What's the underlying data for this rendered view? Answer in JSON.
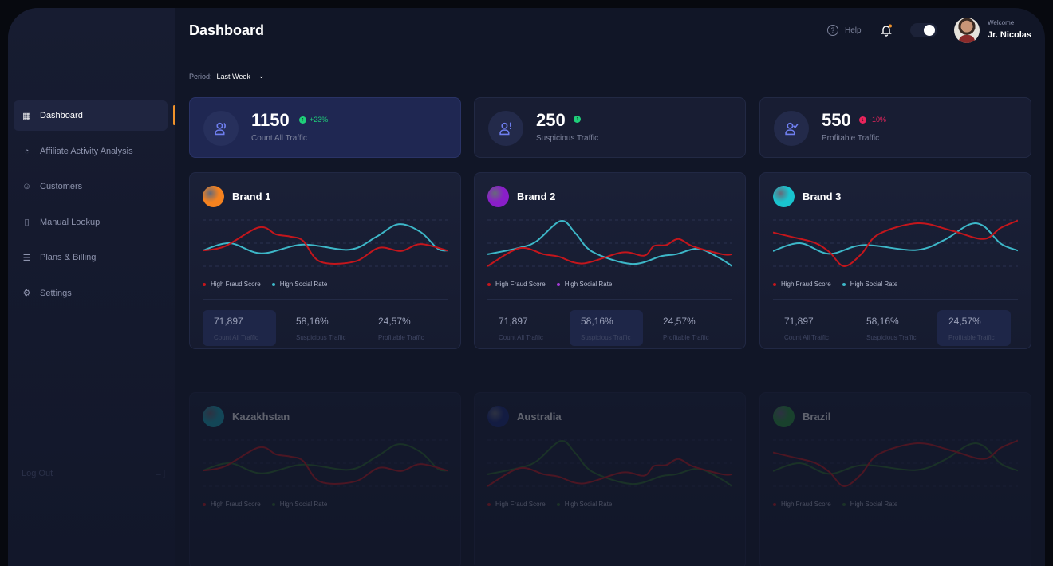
{
  "header": {
    "title": "Dashboard",
    "help": "Help",
    "welcome": "Welcome",
    "user": "Jr. Nicolas",
    "notification_dot_color": "#f0922b"
  },
  "sidebar": {
    "items": [
      {
        "label": "Dashboard",
        "icon": "grid-icon",
        "active": true
      },
      {
        "label": "Affiliate Activity Analysis",
        "icon": "pie-chart-icon"
      },
      {
        "label": "Customers",
        "icon": "smile-icon"
      },
      {
        "label": "Manual Lookup",
        "icon": "document-icon"
      },
      {
        "label": "Plans & Billing",
        "icon": "billing-icon"
      },
      {
        "label": "Settings",
        "icon": "gear-icon"
      }
    ],
    "logout": "Log Out"
  },
  "period": {
    "label": "Period:",
    "value": "Last Week"
  },
  "stats": [
    {
      "value": "1150",
      "change": "+23%",
      "direction": "up",
      "label": "Count All Traffic",
      "icon": "users-icon",
      "highlighted": true
    },
    {
      "value": "250",
      "change": "",
      "direction": "up",
      "label": "Suspicious Traffic",
      "icon": "user-alert-icon"
    },
    {
      "value": "550",
      "change": "-10%",
      "direction": "down",
      "label": "Profitable Traffic",
      "icon": "user-check-icon"
    }
  ],
  "colors": {
    "accent": "#f0922b",
    "fraud": "#c4161c",
    "social": "#3db7c8",
    "up": "#1fcf7a",
    "down": "#e8245c",
    "social_brand2": "#a43bd6",
    "social_country": "#2f6b2a"
  },
  "legend": {
    "fraud": "High Fraud Score",
    "social": "High Social Rate"
  },
  "cards": [
    {
      "name": "Brand 1",
      "logo": "#f5821f",
      "stats": [
        {
          "value": "71,897",
          "label": "Count All Traffic"
        },
        {
          "value": "58,16%",
          "label": "Suspicious Traffic"
        },
        {
          "value": "24,57%",
          "label": "Profitable Traffic"
        }
      ],
      "highlight": 0
    },
    {
      "name": "Brand 2",
      "logo": "#8a1ec9",
      "stats": [
        {
          "value": "71,897",
          "label": "Count All Traffic"
        },
        {
          "value": "58,16%",
          "label": "Suspicious Traffic"
        },
        {
          "value": "24,57%",
          "label": "Profitable Traffic"
        }
      ],
      "highlight": 1
    },
    {
      "name": "Brand 3",
      "logo": "#19c4cf",
      "stats": [
        {
          "value": "71,897",
          "label": "Count All Traffic"
        },
        {
          "value": "58,16%",
          "label": "Suspicious Traffic"
        },
        {
          "value": "24,57%",
          "label": "Profitable Traffic"
        }
      ],
      "highlight": 2
    },
    {
      "name": "Kazakhstan",
      "logo": "#1aa7b8",
      "dim": true
    },
    {
      "name": "Australia",
      "logo": "#1a2a7a",
      "dim": true
    },
    {
      "name": "Brazil",
      "logo": "#2a9a3a",
      "dim": true
    }
  ],
  "chart_data": [
    {
      "type": "line",
      "series": [
        {
          "name": "High Fraud Score",
          "points": [
            [
              0,
              34
            ],
            [
              9,
              43
            ],
            [
              23,
              84
            ],
            [
              30,
              69
            ],
            [
              36,
              64
            ],
            [
              41,
              55
            ],
            [
              48,
              10
            ],
            [
              62,
              10
            ],
            [
              72,
              40
            ],
            [
              81,
              33
            ],
            [
              89,
              48
            ],
            [
              100,
              34
            ]
          ]
        },
        {
          "name": "High Social Rate",
          "points": [
            [
              0,
              34
            ],
            [
              11,
              50
            ],
            [
              24,
              28
            ],
            [
              41,
              47
            ],
            [
              60,
              36
            ],
            [
              71,
              64
            ],
            [
              80,
              91
            ],
            [
              89,
              74
            ],
            [
              96,
              38
            ],
            [
              100,
              34
            ]
          ]
        }
      ]
    },
    {
      "type": "line",
      "series": [
        {
          "name": "High Fraud Score",
          "points": [
            [
              0,
              0
            ],
            [
              13,
              39
            ],
            [
              23,
              26
            ],
            [
              29,
              21
            ],
            [
              39,
              6
            ],
            [
              55,
              30
            ],
            [
              64,
              23
            ],
            [
              68,
              44
            ],
            [
              73,
              46
            ],
            [
              78,
              59
            ],
            [
              84,
              43
            ],
            [
              96,
              26
            ],
            [
              100,
              26
            ]
          ]
        },
        {
          "name": "High Social Rate",
          "points": [
            [
              0,
              26
            ],
            [
              13,
              40
            ],
            [
              20,
              54
            ],
            [
              30,
              98
            ],
            [
              36,
              71
            ],
            [
              43,
              31
            ],
            [
              59,
              5
            ],
            [
              71,
              22
            ],
            [
              77,
              26
            ],
            [
              86,
              38
            ],
            [
              94,
              20
            ],
            [
              100,
              0
            ]
          ]
        }
      ]
    },
    {
      "type": "line",
      "series": [
        {
          "name": "High Fraud Score",
          "points": [
            [
              0,
              73
            ],
            [
              8,
              63
            ],
            [
              17,
              51
            ],
            [
              23,
              31
            ],
            [
              29,
              0
            ],
            [
              36,
              26
            ],
            [
              43,
              69
            ],
            [
              59,
              93
            ],
            [
              73,
              77
            ],
            [
              86,
              59
            ],
            [
              93,
              83
            ],
            [
              100,
              99
            ]
          ]
        },
        {
          "name": "High Social Rate",
          "points": [
            [
              0,
              33
            ],
            [
              11,
              50
            ],
            [
              23,
              27
            ],
            [
              37,
              46
            ],
            [
              58,
              35
            ],
            [
              70,
              57
            ],
            [
              80,
              90
            ],
            [
              86,
              87
            ],
            [
              93,
              49
            ],
            [
              100,
              34
            ]
          ]
        }
      ]
    }
  ]
}
